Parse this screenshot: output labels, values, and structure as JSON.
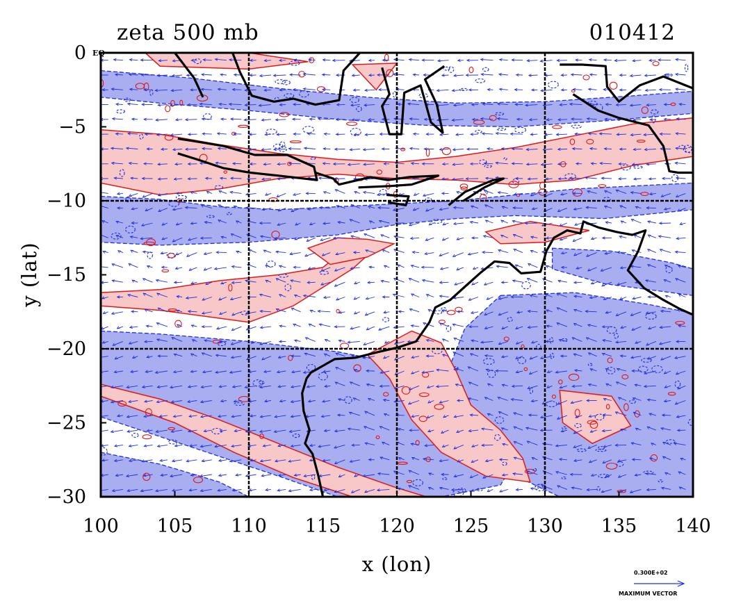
{
  "map": {
    "title_left": "zeta 500 mb",
    "title_right": "010412",
    "xlabel": "x (lon)",
    "ylabel": "y (lat)",
    "corner_label": "EQ",
    "colors": {
      "positive_fill": "#f8c8c8",
      "positive_line": "#e01818",
      "negative_fill": "#a8aef0",
      "negative_line": "#2030e0",
      "vector": "#2030e0",
      "coast": "#000000",
      "grid": "#000000"
    }
  },
  "chart_data": {
    "type": "contour-vector-map",
    "xlim": [
      100,
      140
    ],
    "ylim": [
      -30,
      0
    ],
    "x_ticks": [
      {
        "value": 100,
        "label": "100"
      },
      {
        "value": 105,
        "label": "105"
      },
      {
        "value": 110,
        "label": "110"
      },
      {
        "value": 115,
        "label": "115"
      },
      {
        "value": 120,
        "label": "120"
      },
      {
        "value": 125,
        "label": "125"
      },
      {
        "value": 130,
        "label": "130"
      },
      {
        "value": 135,
        "label": "135"
      },
      {
        "value": 140,
        "label": "140"
      }
    ],
    "y_ticks": [
      {
        "value": 0,
        "label": "0"
      },
      {
        "value": -5,
        "label": "−5"
      },
      {
        "value": -10,
        "label": "−10"
      },
      {
        "value": -15,
        "label": "−15"
      },
      {
        "value": -20,
        "label": "−20"
      },
      {
        "value": -25,
        "label": "−25"
      },
      {
        "value": -30,
        "label": "−30"
      }
    ],
    "grid_lon": [
      110,
      120,
      130
    ],
    "grid_lat": [
      -10,
      -20
    ],
    "reference_vector": {
      "value_label": "0.300E+02",
      "caption": "MAXIMUM VECTOR"
    },
    "positive_regions": [
      [
        [
          100,
          -5.2
        ],
        [
          104,
          -5.5
        ],
        [
          108,
          -6.2
        ],
        [
          112,
          -6.8
        ],
        [
          116,
          -7.2
        ],
        [
          120,
          -7.4
        ],
        [
          124,
          -7.0
        ],
        [
          128,
          -6.4
        ],
        [
          132,
          -5.6
        ],
        [
          136,
          -4.8
        ],
        [
          140,
          -4.4
        ],
        [
          140,
          -7.0
        ],
        [
          136,
          -7.6
        ],
        [
          132,
          -8.6
        ],
        [
          128,
          -8.9
        ],
        [
          124,
          -8.6
        ],
        [
          120,
          -8.5
        ],
        [
          116,
          -8.2
        ],
        [
          112,
          -8.5
        ],
        [
          108,
          -9.2
        ],
        [
          104,
          -9.6
        ],
        [
          100,
          -8.8
        ]
      ],
      [
        [
          100,
          -16.2
        ],
        [
          104,
          -16.0
        ],
        [
          108,
          -15.4
        ],
        [
          112,
          -15.0
        ],
        [
          115,
          -14.5
        ],
        [
          116.5,
          -13.3
        ],
        [
          119,
          -12.8
        ],
        [
          117,
          -14.6
        ],
        [
          113,
          -17.1
        ],
        [
          110,
          -18.2
        ],
        [
          104,
          -17.4
        ],
        [
          100,
          -17.1
        ]
      ],
      [
        [
          114,
          -13.2
        ],
        [
          116,
          -12.5
        ],
        [
          118,
          -12.6
        ],
        [
          119.8,
          -12.9
        ],
        [
          118,
          -13.8
        ],
        [
          115.5,
          -14.3
        ]
      ],
      [
        [
          100,
          -22.4
        ],
        [
          104,
          -23.4
        ],
        [
          108,
          -24.8
        ],
        [
          112,
          -26.4
        ],
        [
          116,
          -28.0
        ],
        [
          120,
          -29.4
        ],
        [
          122,
          -30
        ],
        [
          117,
          -30
        ],
        [
          113,
          -28.7
        ],
        [
          109,
          -27.0
        ],
        [
          105,
          -25.0
        ],
        [
          100,
          -23.2
        ]
      ],
      [
        [
          118,
          -20.4
        ],
        [
          121,
          -18.8
        ],
        [
          123,
          -19.6
        ],
        [
          124,
          -21.5
        ],
        [
          125,
          -23.8
        ],
        [
          127,
          -25.5
        ],
        [
          128.5,
          -27.4
        ],
        [
          129,
          -29.0
        ],
        [
          126,
          -28.6
        ],
        [
          123,
          -27.0
        ],
        [
          121,
          -24.8
        ],
        [
          119.5,
          -22.0
        ]
      ],
      [
        [
          103,
          0
        ],
        [
          110,
          0
        ],
        [
          114,
          -0.6
        ],
        [
          110,
          -1.1
        ],
        [
          104,
          -0.9
        ]
      ],
      [
        [
          117,
          -0.8
        ],
        [
          120,
          -0.7
        ],
        [
          118.6,
          -2.5
        ]
      ],
      [
        [
          131,
          -22.8
        ],
        [
          134.5,
          -23.2
        ],
        [
          135.8,
          -25.2
        ],
        [
          133.2,
          -26.4
        ],
        [
          131.2,
          -25.0
        ]
      ],
      [
        [
          126,
          -12.1
        ],
        [
          129,
          -11.4
        ],
        [
          133,
          -12.0
        ],
        [
          130,
          -12.8
        ],
        [
          127,
          -12.9
        ]
      ]
    ],
    "negative_regions": [
      [
        [
          100,
          -1.2
        ],
        [
          106,
          -1.7
        ],
        [
          112,
          -2.4
        ],
        [
          118,
          -3.0
        ],
        [
          124,
          -3.4
        ],
        [
          130,
          -3.3
        ],
        [
          136,
          -2.9
        ],
        [
          140,
          -2.6
        ],
        [
          140,
          -4.1
        ],
        [
          134,
          -4.6
        ],
        [
          128,
          -5.0
        ],
        [
          122,
          -4.9
        ],
        [
          116,
          -4.5
        ],
        [
          110,
          -3.9
        ],
        [
          104,
          -3.4
        ],
        [
          100,
          -3.0
        ]
      ],
      [
        [
          100,
          -9.7
        ],
        [
          104,
          -9.9
        ],
        [
          108,
          -10.4
        ],
        [
          112,
          -10.6
        ],
        [
          116,
          -10.4
        ],
        [
          120,
          -10.2
        ],
        [
          124,
          -10.0
        ],
        [
          128,
          -9.6
        ],
        [
          132,
          -9.2
        ],
        [
          136,
          -9.0
        ],
        [
          140,
          -8.8
        ],
        [
          140,
          -10.6
        ],
        [
          134,
          -11.2
        ],
        [
          128,
          -11.0
        ],
        [
          124,
          -11.2
        ],
        [
          120,
          -11.6
        ],
        [
          116,
          -12.3
        ],
        [
          110,
          -12.8
        ],
        [
          104,
          -13.0
        ],
        [
          100,
          -12.8
        ]
      ],
      [
        [
          100,
          -18.8
        ],
        [
          104,
          -19.0
        ],
        [
          110,
          -19.5
        ],
        [
          116,
          -20.2
        ],
        [
          119,
          -20.8
        ],
        [
          120,
          -22.0
        ],
        [
          123,
          -24.2
        ],
        [
          126,
          -26.0
        ],
        [
          128,
          -27.6
        ],
        [
          127,
          -29.2
        ],
        [
          123,
          -30
        ],
        [
          116,
          -30
        ],
        [
          112,
          -28.6
        ],
        [
          106,
          -26.6
        ],
        [
          100,
          -24.6
        ]
      ],
      [
        [
          100,
          -27.0
        ],
        [
          104,
          -27.8
        ],
        [
          108,
          -29.0
        ],
        [
          110,
          -30
        ],
        [
          100,
          -30
        ]
      ],
      [
        [
          127,
          -16.4
        ],
        [
          132,
          -16.2
        ],
        [
          137,
          -17.0
        ],
        [
          140,
          -17.6
        ],
        [
          140,
          -30
        ],
        [
          131,
          -30
        ],
        [
          127.4,
          -28.3
        ],
        [
          124.5,
          -25.3
        ],
        [
          123.4,
          -21.6
        ],
        [
          124.6,
          -18.6
        ]
      ],
      [
        [
          130.5,
          -13.2
        ],
        [
          134.5,
          -13.4
        ],
        [
          138.6,
          -14.2
        ],
        [
          140,
          -14.6
        ],
        [
          140,
          -16.4
        ],
        [
          134,
          -15.6
        ],
        [
          130.5,
          -14.6
        ]
      ]
    ],
    "coastlines": [
      [
        [
          113.9,
          -22.0
        ],
        [
          114.2,
          -21.6
        ],
        [
          115.8,
          -20.7
        ],
        [
          117.2,
          -20.6
        ],
        [
          118.8,
          -20.2
        ],
        [
          120.1,
          -19.9
        ],
        [
          121.3,
          -19.5
        ],
        [
          122.2,
          -18.2
        ],
        [
          122.6,
          -17.2
        ],
        [
          123.6,
          -16.7
        ],
        [
          124.6,
          -15.8
        ],
        [
          125.6,
          -14.9
        ],
        [
          126.6,
          -14.1
        ],
        [
          127.6,
          -14.2
        ],
        [
          128.4,
          -14.9
        ],
        [
          129.7,
          -14.8
        ],
        [
          130.1,
          -13.4
        ],
        [
          130.6,
          -12.5
        ],
        [
          131.5,
          -12.0
        ],
        [
          132.4,
          -12.2
        ],
        [
          132.6,
          -11.4
        ],
        [
          133.6,
          -11.8
        ],
        [
          134.8,
          -12.1
        ],
        [
          135.9,
          -12.3
        ],
        [
          136.8,
          -12.0
        ],
        [
          136.3,
          -13.4
        ],
        [
          135.6,
          -14.7
        ],
        [
          136.7,
          -15.9
        ],
        [
          138.0,
          -16.7
        ],
        [
          139.1,
          -17.3
        ],
        [
          140,
          -17.7
        ]
      ],
      [
        [
          113.9,
          -22.0
        ],
        [
          113.6,
          -23.0
        ],
        [
          113.7,
          -24.2
        ],
        [
          114.1,
          -25.5
        ],
        [
          113.8,
          -26.4
        ],
        [
          114.3,
          -27.1
        ],
        [
          114.7,
          -28.6
        ],
        [
          115.0,
          -30
        ]
      ],
      [
        [
          105.0,
          0
        ],
        [
          106.3,
          -1.7
        ],
        [
          106.9,
          -3.0
        ]
      ],
      [
        [
          105.2,
          -5.8
        ],
        [
          106.5,
          -6.0
        ],
        [
          108.3,
          -6.3
        ],
        [
          110.4,
          -6.9
        ],
        [
          112.6,
          -6.9
        ],
        [
          114.4,
          -7.7
        ],
        [
          114.6,
          -8.6
        ],
        [
          112.0,
          -8.3
        ],
        [
          110.1,
          -8.1
        ],
        [
          108.3,
          -7.8
        ],
        [
          106.5,
          -7.2
        ],
        [
          105.2,
          -6.8
        ]
      ],
      [
        [
          114.5,
          -8.1
        ],
        [
          115.7,
          -8.5
        ],
        [
          116.1,
          -8.9
        ],
        [
          118.2,
          -8.4
        ],
        [
          119.4,
          -8.6
        ],
        [
          120.8,
          -8.4
        ],
        [
          122.8,
          -8.3
        ],
        [
          121.0,
          -8.9
        ],
        [
          119.6,
          -9.0
        ],
        [
          117.4,
          -9.1
        ]
      ],
      [
        [
          119.3,
          -9.6
        ],
        [
          120.8,
          -9.7
        ],
        [
          120.6,
          -10.3
        ],
        [
          119.4,
          -10.1
        ]
      ],
      [
        [
          123.5,
          -10.3
        ],
        [
          124.6,
          -9.4
        ],
        [
          126.5,
          -8.6
        ],
        [
          127.2,
          -8.5
        ],
        [
          125.9,
          -9.1
        ],
        [
          124.5,
          -10.0
        ]
      ],
      [
        [
          119.0,
          -1.0
        ],
        [
          119.5,
          -2.8
        ],
        [
          119.0,
          -3.6
        ],
        [
          119.5,
          -5.5
        ],
        [
          120.3,
          -5.5
        ],
        [
          120.5,
          -2.7
        ],
        [
          121.6,
          -2.2
        ],
        [
          122.3,
          -4.7
        ],
        [
          123.1,
          -5.4
        ],
        [
          122.7,
          -3.5
        ],
        [
          121.9,
          -1.8
        ],
        [
          123.2,
          -0.9
        ]
      ],
      [
        [
          108.9,
          0
        ],
        [
          109.4,
          -1.3
        ],
        [
          110.2,
          -2.9
        ],
        [
          111.7,
          -3.3
        ],
        [
          113.0,
          -3.1
        ],
        [
          114.5,
          -3.5
        ],
        [
          116.1,
          -3.2
        ],
        [
          116.4,
          -1.2
        ],
        [
          117.5,
          0
        ]
      ],
      [
        [
          131.0,
          -0.8
        ],
        [
          132.5,
          -0.8
        ],
        [
          134.1,
          -0.9
        ],
        [
          134.2,
          -2.3
        ],
        [
          135.0,
          -3.3
        ],
        [
          136.4,
          -2.2
        ],
        [
          138.0,
          -1.6
        ],
        [
          140,
          -2.4
        ]
      ],
      [
        [
          131.9,
          -2.8
        ],
        [
          133.6,
          -3.9
        ],
        [
          135.0,
          -4.4
        ],
        [
          137.0,
          -4.9
        ],
        [
          138.0,
          -6.3
        ],
        [
          138.4,
          -8.0
        ],
        [
          139.0,
          -8.1
        ],
        [
          140,
          -8.1
        ]
      ]
    ]
  }
}
